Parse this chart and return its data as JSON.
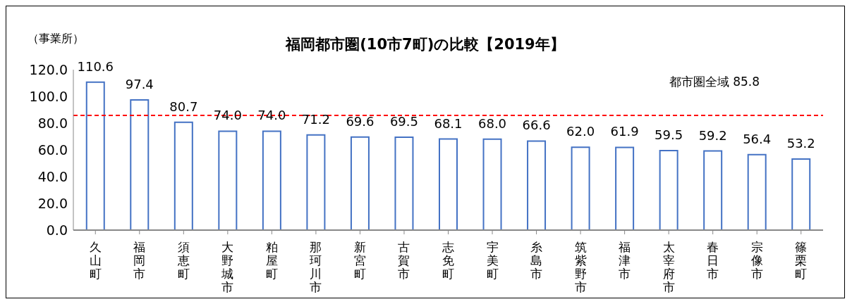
{
  "chart_data": {
    "type": "bar",
    "title": "福岡都市圏(10市7町)の比較【2019年】",
    "ylabel": "（事業所）",
    "categories": [
      "久山町",
      "福岡市",
      "須恵町",
      "大野城市",
      "粕屋町",
      "那珂川市",
      "新宮町",
      "古賀市",
      "志免町",
      "宇美町",
      "糸島市",
      "筑紫野市",
      "福津市",
      "太宰府市",
      "春日市",
      "宗像市",
      "篠栗町"
    ],
    "values": [
      110.6,
      97.4,
      80.7,
      74.0,
      74.0,
      71.2,
      69.6,
      69.5,
      68.1,
      68.0,
      66.6,
      62.0,
      61.9,
      59.5,
      59.2,
      56.4,
      53.2
    ],
    "color": "#4472c4",
    "value_labels": [
      "110.6",
      "97.4",
      "80.7",
      "74.0",
      "74.0",
      "71.2",
      "69.6",
      "69.5",
      "68.1",
      "68.0",
      "66.6",
      "62.0",
      "61.9",
      "59.5",
      "59.2",
      "56.4",
      "53.2"
    ],
    "ylim": [
      0,
      120
    ],
    "yticks": [
      {
        "value": 0,
        "label": "0.0"
      },
      {
        "value": 20,
        "label": "20.0"
      },
      {
        "value": 40,
        "label": "40.0"
      },
      {
        "value": 60,
        "label": "60.0"
      },
      {
        "value": 80,
        "label": "80.0"
      },
      {
        "value": 100,
        "label": "100.0"
      },
      {
        "value": 120,
        "label": "120.0"
      }
    ],
    "ref_lines": [
      {
        "axis": "y",
        "value": 85.8,
        "label": "都市圏全域  85.8",
        "color": "#ff0000",
        "line_style": "dashed"
      }
    ],
    "grid": false,
    "legend": false
  }
}
